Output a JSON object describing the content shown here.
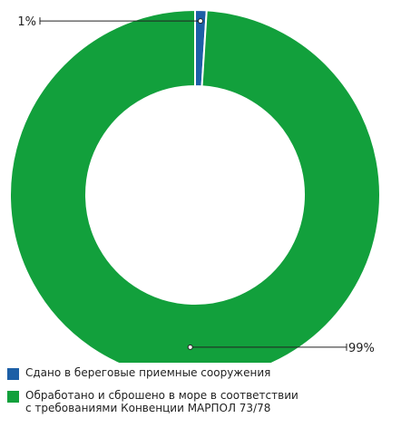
{
  "chart_data": {
    "type": "pie",
    "donut": true,
    "categories": [
      "Сдано в береговые приемные сооружения",
      "Обработано и сброшено в море в соответствии\nс требованиями Конвенции МАРПОЛ 73/78"
    ],
    "values": [
      1,
      99
    ],
    "data_labels": [
      "1%",
      "99%"
    ],
    "colors": [
      "#1d5fa6",
      "#12a03c"
    ],
    "legend_position": "bottom"
  }
}
